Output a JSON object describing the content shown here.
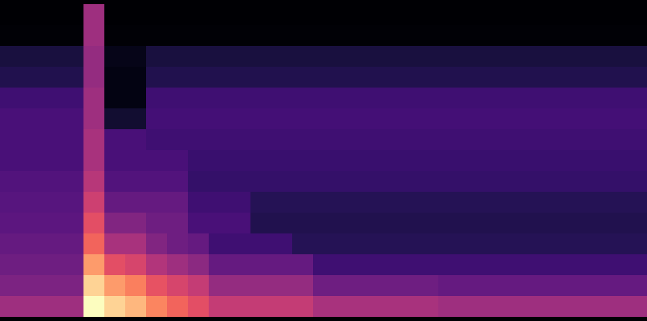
{
  "chart_data": {
    "type": "heatmap",
    "tick_labels": false,
    "color": "magma",
    "cells": [
      [
        0.02,
        0.02,
        0.02,
        0.02,
        0.4,
        0.02,
        0.02,
        0.02,
        0.02,
        0.02,
        0.02,
        0.02,
        0.02,
        0.02,
        0.02,
        0.02,
        0.02,
        0.02,
        0.02,
        0.02,
        0.02,
        0.02,
        0.02,
        0.02,
        0.02,
        0.02,
        0.02,
        0.02,
        0.02,
        0.02,
        0.02
      ],
      [
        0.03,
        0.03,
        0.03,
        0.03,
        0.4,
        0.03,
        0.03,
        0.03,
        0.03,
        0.03,
        0.03,
        0.03,
        0.03,
        0.03,
        0.03,
        0.03,
        0.03,
        0.03,
        0.03,
        0.03,
        0.03,
        0.03,
        0.03,
        0.03,
        0.03,
        0.03,
        0.03,
        0.03,
        0.03,
        0.03,
        0.03
      ],
      [
        0.12,
        0.12,
        0.12,
        0.12,
        0.38,
        0.06,
        0.06,
        0.12,
        0.12,
        0.12,
        0.12,
        0.12,
        0.12,
        0.12,
        0.12,
        0.12,
        0.12,
        0.12,
        0.12,
        0.12,
        0.12,
        0.12,
        0.12,
        0.12,
        0.12,
        0.12,
        0.12,
        0.12,
        0.12,
        0.12,
        0.12
      ],
      [
        0.14,
        0.14,
        0.14,
        0.14,
        0.38,
        0.05,
        0.05,
        0.14,
        0.14,
        0.14,
        0.14,
        0.14,
        0.14,
        0.14,
        0.14,
        0.14,
        0.14,
        0.14,
        0.14,
        0.14,
        0.14,
        0.14,
        0.14,
        0.14,
        0.14,
        0.14,
        0.14,
        0.14,
        0.14,
        0.14,
        0.14
      ],
      [
        0.2,
        0.2,
        0.2,
        0.2,
        0.4,
        0.05,
        0.05,
        0.2,
        0.2,
        0.2,
        0.2,
        0.2,
        0.2,
        0.2,
        0.2,
        0.2,
        0.2,
        0.2,
        0.2,
        0.2,
        0.2,
        0.2,
        0.2,
        0.2,
        0.2,
        0.2,
        0.2,
        0.2,
        0.2,
        0.2,
        0.2
      ],
      [
        0.22,
        0.22,
        0.22,
        0.22,
        0.4,
        0.1,
        0.1,
        0.21,
        0.21,
        0.21,
        0.21,
        0.21,
        0.21,
        0.21,
        0.21,
        0.21,
        0.21,
        0.21,
        0.21,
        0.21,
        0.21,
        0.21,
        0.21,
        0.21,
        0.21,
        0.21,
        0.21,
        0.21,
        0.21,
        0.21,
        0.21
      ],
      [
        0.22,
        0.22,
        0.22,
        0.22,
        0.42,
        0.22,
        0.22,
        0.2,
        0.2,
        0.2,
        0.2,
        0.2,
        0.2,
        0.2,
        0.2,
        0.2,
        0.2,
        0.2,
        0.2,
        0.2,
        0.2,
        0.2,
        0.2,
        0.2,
        0.2,
        0.2,
        0.2,
        0.2,
        0.2,
        0.2,
        0.2
      ],
      [
        0.22,
        0.22,
        0.22,
        0.22,
        0.42,
        0.22,
        0.22,
        0.22,
        0.22,
        0.19,
        0.19,
        0.19,
        0.19,
        0.19,
        0.19,
        0.19,
        0.19,
        0.19,
        0.19,
        0.19,
        0.19,
        0.19,
        0.19,
        0.19,
        0.19,
        0.19,
        0.19,
        0.19,
        0.19,
        0.19,
        0.19
      ],
      [
        0.24,
        0.24,
        0.24,
        0.24,
        0.45,
        0.24,
        0.24,
        0.24,
        0.24,
        0.18,
        0.18,
        0.18,
        0.18,
        0.18,
        0.18,
        0.18,
        0.18,
        0.18,
        0.18,
        0.18,
        0.18,
        0.18,
        0.18,
        0.18,
        0.18,
        0.18,
        0.18,
        0.18,
        0.18,
        0.18,
        0.18
      ],
      [
        0.25,
        0.25,
        0.25,
        0.25,
        0.5,
        0.28,
        0.28,
        0.28,
        0.28,
        0.2,
        0.2,
        0.2,
        0.15,
        0.15,
        0.15,
        0.15,
        0.15,
        0.15,
        0.15,
        0.15,
        0.15,
        0.15,
        0.15,
        0.15,
        0.15,
        0.15,
        0.15,
        0.15,
        0.15,
        0.15,
        0.15
      ],
      [
        0.26,
        0.26,
        0.26,
        0.26,
        0.55,
        0.34,
        0.34,
        0.3,
        0.3,
        0.22,
        0.22,
        0.22,
        0.14,
        0.14,
        0.14,
        0.14,
        0.14,
        0.14,
        0.14,
        0.14,
        0.14,
        0.14,
        0.14,
        0.14,
        0.14,
        0.14,
        0.14,
        0.14,
        0.14,
        0.14,
        0.14
      ],
      [
        0.28,
        0.28,
        0.28,
        0.28,
        0.6,
        0.42,
        0.42,
        0.34,
        0.3,
        0.28,
        0.2,
        0.2,
        0.2,
        0.2,
        0.15,
        0.15,
        0.15,
        0.15,
        0.15,
        0.15,
        0.15,
        0.15,
        0.15,
        0.15,
        0.15,
        0.15,
        0.15,
        0.15,
        0.15,
        0.15,
        0.15
      ],
      [
        0.3,
        0.3,
        0.3,
        0.3,
        0.7,
        0.55,
        0.52,
        0.44,
        0.4,
        0.36,
        0.28,
        0.28,
        0.28,
        0.28,
        0.28,
        0.2,
        0.2,
        0.2,
        0.2,
        0.2,
        0.2,
        0.2,
        0.2,
        0.2,
        0.2,
        0.2,
        0.2,
        0.2,
        0.2,
        0.2,
        0.2
      ],
      [
        0.33,
        0.33,
        0.33,
        0.33,
        0.8,
        0.7,
        0.65,
        0.56,
        0.52,
        0.48,
        0.38,
        0.38,
        0.38,
        0.38,
        0.38,
        0.3,
        0.3,
        0.3,
        0.3,
        0.3,
        0.3,
        0.28,
        0.28,
        0.28,
        0.28,
        0.28,
        0.28,
        0.28,
        0.28,
        0.28,
        0.28
      ],
      [
        0.4,
        0.4,
        0.4,
        0.4,
        0.88,
        0.8,
        0.75,
        0.66,
        0.6,
        0.55,
        0.48,
        0.48,
        0.48,
        0.48,
        0.48,
        0.42,
        0.42,
        0.42,
        0.42,
        0.42,
        0.42,
        0.4,
        0.4,
        0.4,
        0.4,
        0.4,
        0.4,
        0.4,
        0.4,
        0.4,
        0.4
      ]
    ]
  }
}
